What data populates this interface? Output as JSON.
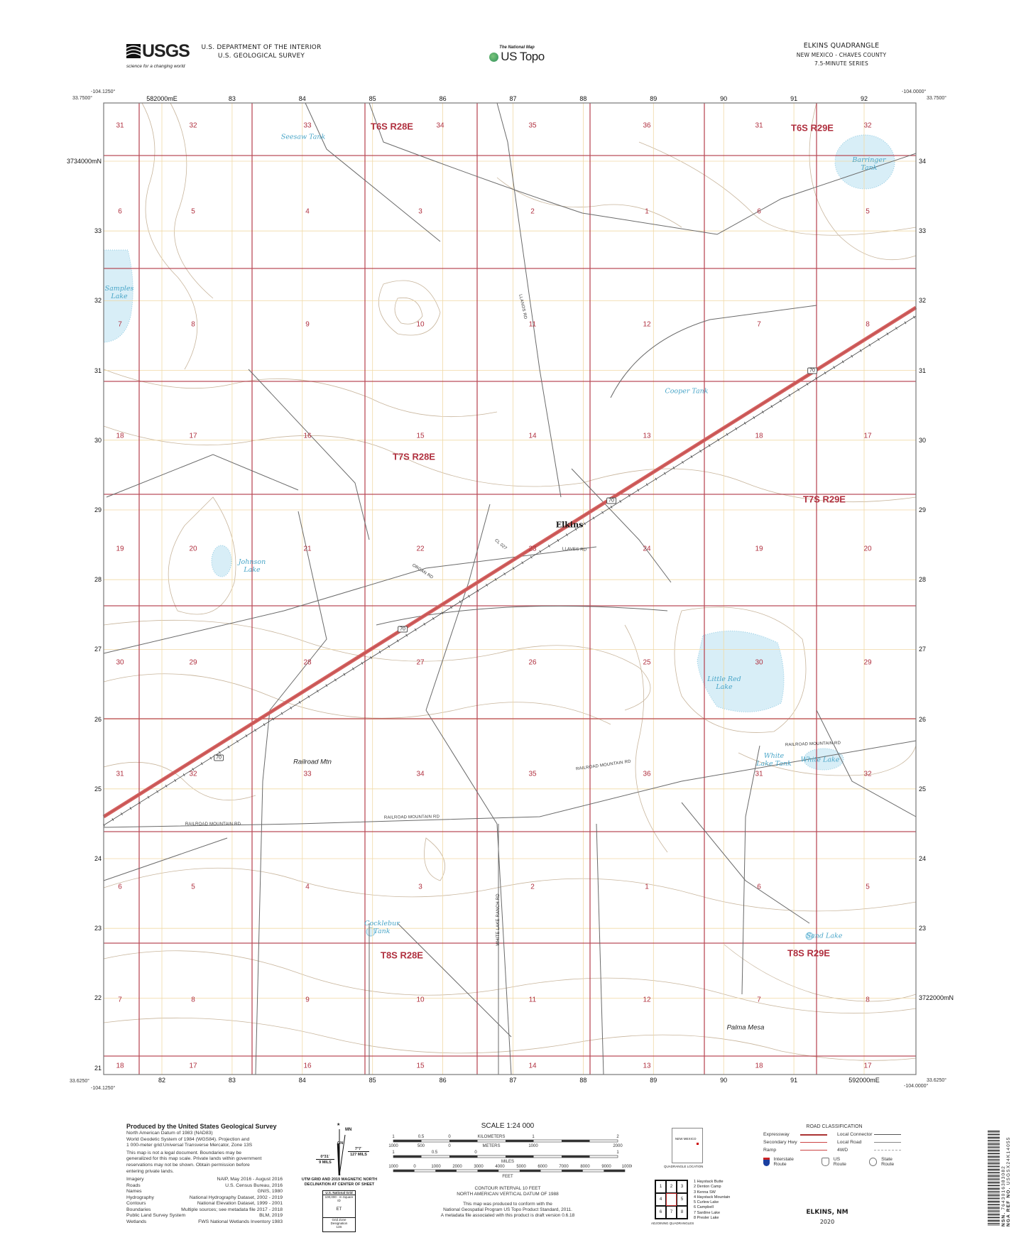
{
  "header": {
    "agency_logo": "USGS",
    "agency_tagline": "science for a changing world",
    "department": "U.S. DEPARTMENT OF THE INTERIOR",
    "survey": "U.S. GEOLOGICAL SURVEY",
    "national_map_small": "The National Map",
    "national_map_logo": "US Topo",
    "quad_title": "ELKINS QUADRANGLE",
    "state_county": "NEW MEXICO - CHAVES COUNTY",
    "series": "7.5-MINUTE SERIES"
  },
  "corners": {
    "nw_lon": "-104.1250°",
    "nw_lat": "33.7500°",
    "ne_lon": "-104.0000°",
    "ne_lat": "33.7500°",
    "sw_lon": "-104.1250°",
    "sw_lat": "33.6250°",
    "se_lon": "-104.0000°",
    "se_lat": "33.6250°"
  },
  "grid": {
    "top_eastings": [
      "582000mE",
      "83",
      "84",
      "85",
      "86",
      "87",
      "88",
      "89",
      "90",
      "91",
      "92"
    ],
    "bottom_eastings": [
      "82",
      "83",
      "84",
      "85",
      "86",
      "87",
      "88",
      "89",
      "90",
      "91",
      "592000mE"
    ],
    "left_northings": [
      "3734000mN",
      "33",
      "32",
      "31",
      "30",
      "29",
      "28",
      "27",
      "26",
      "25",
      "24",
      "23",
      "22",
      "21"
    ],
    "right_northings": [
      "34",
      "33",
      "32",
      "31",
      "30",
      "29",
      "28",
      "27",
      "26",
      "25",
      "24",
      "23",
      "3722000mN"
    ]
  },
  "sections": [
    [
      "31",
      "32",
      "33",
      "34",
      "35",
      "36",
      "31",
      "32"
    ],
    [
      "6",
      "5",
      "4",
      "3",
      "2",
      "1",
      "6",
      "5"
    ],
    [
      "7",
      "8",
      "9",
      "10",
      "11",
      "12",
      "7",
      "8"
    ],
    [
      "18",
      "17",
      "16",
      "15",
      "14",
      "13",
      "18",
      "17"
    ],
    [
      "19",
      "20",
      "21",
      "22",
      "23",
      "24",
      "19",
      "20"
    ],
    [
      "30",
      "29",
      "28",
      "27",
      "26",
      "25",
      "30",
      "29"
    ],
    [
      "31",
      "32",
      "33",
      "34",
      "35",
      "36",
      "31",
      "32"
    ],
    [
      "6",
      "5",
      "4",
      "3",
      "2",
      "1",
      "6",
      "5"
    ],
    [
      "7",
      "8",
      "9",
      "10",
      "11",
      "12",
      "7",
      "8"
    ],
    [
      "18",
      "17",
      "16",
      "15",
      "14",
      "13",
      "18",
      "17"
    ]
  ],
  "townships": [
    "T6S R28E",
    "T6S R29E",
    "T7S R28E",
    "T7S R29E",
    "T8S R28E",
    "T8S R29E"
  ],
  "water_features": [
    "Seesaw Tank",
    "Barringer Tank",
    "Samples Lake",
    "Cooper Tank",
    "Johnson Lake",
    "Little Red Lake",
    "White Lake Tank",
    "White Lake",
    "Cocklebur Tank",
    "Sand Lake"
  ],
  "places": [
    "Elkins"
  ],
  "landforms": [
    "Railroad Mtn",
    "Palma Mesa"
  ],
  "roads": [
    "LLAVES RD",
    "CL 027",
    "LLANOS RD",
    "ORGAN RD",
    "RAILROAD MOUNTAIN RD",
    "RAILROAD MOUNTAIN RD",
    "RAILROAD MOUNTAIN RD",
    "RAILROAD MOUNTAIN RD",
    "WHITE LAKE RANCH RD"
  ],
  "route_shields": [
    "70",
    "70",
    "70",
    "70"
  ],
  "colors": {
    "section_lines": "#b0303f",
    "utm_grid": "#f0d9a6",
    "highway": "#d4605f",
    "contour": "#c8b59c",
    "water": "#4aa6c8",
    "water_fill": "#d8eef7",
    "road": "#6a6a6a"
  },
  "credits": {
    "title": "Produced by the United States Geological Survey",
    "lines": [
      "North American Datum of 1983 (NAD83)",
      "World Geodetic System of 1984 (WGS84). Projection and",
      "1 000-meter grid:Universal Transverse Mercator, Zone 13S",
      "This map is not a legal document. Boundaries may be",
      "generalized for this map scale. Private lands within government",
      "reservations may not be shown. Obtain permission before",
      "entering private lands."
    ],
    "sources": [
      {
        "name": "Imagery",
        "value": "NAIP, May 2016 - August 2016"
      },
      {
        "name": "Roads",
        "value": "U.S. Census Bureau, 2016"
      },
      {
        "name": "Names",
        "value": "GNIS, 1980"
      },
      {
        "name": "Hydrography",
        "value": "National Hydrography Dataset, 2002 - 2019"
      },
      {
        "name": "Contours",
        "value": "National Elevation Dataset, 1999 - 2001"
      },
      {
        "name": "Boundaries",
        "value": "Multiple sources; see metadata file 2017 - 2018"
      },
      {
        "name": "Public Land Survey System",
        "value": "BLM, 2019"
      },
      {
        "name": "Wetlands",
        "value": "FWS National Wetlands Inventory 1983"
      }
    ]
  },
  "declination": {
    "mn": "MN",
    "gn": "GN",
    "star": "★",
    "west_angle": "0°31´",
    "west_mils": "9 MILS",
    "east_angle": "7°7´",
    "east_mils": "127 MILS",
    "caption": "UTM GRID AND 2019 MAGNETIC NORTH DECLINATION AT CENTER OF SHEET",
    "grid_box_title": "U.S. National Grid",
    "grid_box_sub": "100,000 - m Square ID",
    "square_id": "ET",
    "zone_label": "Grid Zone Designation",
    "zone": "13S"
  },
  "scale": {
    "title": "SCALE 1:24 000",
    "km_ticks": [
      "1",
      "0.5",
      "0",
      "1",
      "2"
    ],
    "km_label": "KILOMETERS",
    "m_ticks": [
      "1000",
      "500",
      "0",
      "1000",
      "2000"
    ],
    "m_label": "METERS",
    "mi_ticks": [
      "1",
      "0.5",
      "0",
      "1"
    ],
    "mi_label": "MILES",
    "ft_ticks": [
      "1000",
      "0",
      "1000",
      "2000",
      "3000",
      "4000",
      "5000",
      "6000",
      "7000",
      "8000",
      "9000",
      "10000"
    ],
    "ft_label": "FEET",
    "contour_interval": "CONTOUR INTERVAL 10 FEET",
    "datum": "NORTH AMERICAN VERTICAL DATUM OF 1988",
    "standard_1": "This map was produced to conform with the",
    "standard_2": "National Geospatial Program US Topo Product Standard, 2011.",
    "standard_3": "A metadata file associated with this product is draft version 0.6.18"
  },
  "location": {
    "state": "NEW MEXICO",
    "caption": "QUADRANGLE LOCATION"
  },
  "adjoining": {
    "cells": [
      "1",
      "2",
      "3",
      "4",
      "",
      "5",
      "6",
      "7",
      "8"
    ],
    "names": [
      "1 Haystack Butte",
      "2 Denton Camp",
      "3 Kenna SW",
      "4 Haystack Mountain",
      "5 Curlew Lake",
      "6 Campbell",
      "7 Sardine Lake",
      "8 Presler Lake"
    ],
    "caption": "ADJOINING QUADRANGLES"
  },
  "road_legend": {
    "title": "ROAD CLASSIFICATION",
    "items": [
      "Expressway",
      "Secondary Hwy",
      "Ramp",
      "Local Connector",
      "Local Road",
      "4WD"
    ],
    "routes": [
      "Interstate Route",
      "US Route",
      "State Route"
    ]
  },
  "footer": {
    "name": "ELKINS, NM",
    "year": "2020"
  },
  "barcode": {
    "nsn_label": "NSN.",
    "nsn": "7643016383082",
    "nga_label": "NGA REF NO.",
    "nga": "USGSX24K14055"
  }
}
